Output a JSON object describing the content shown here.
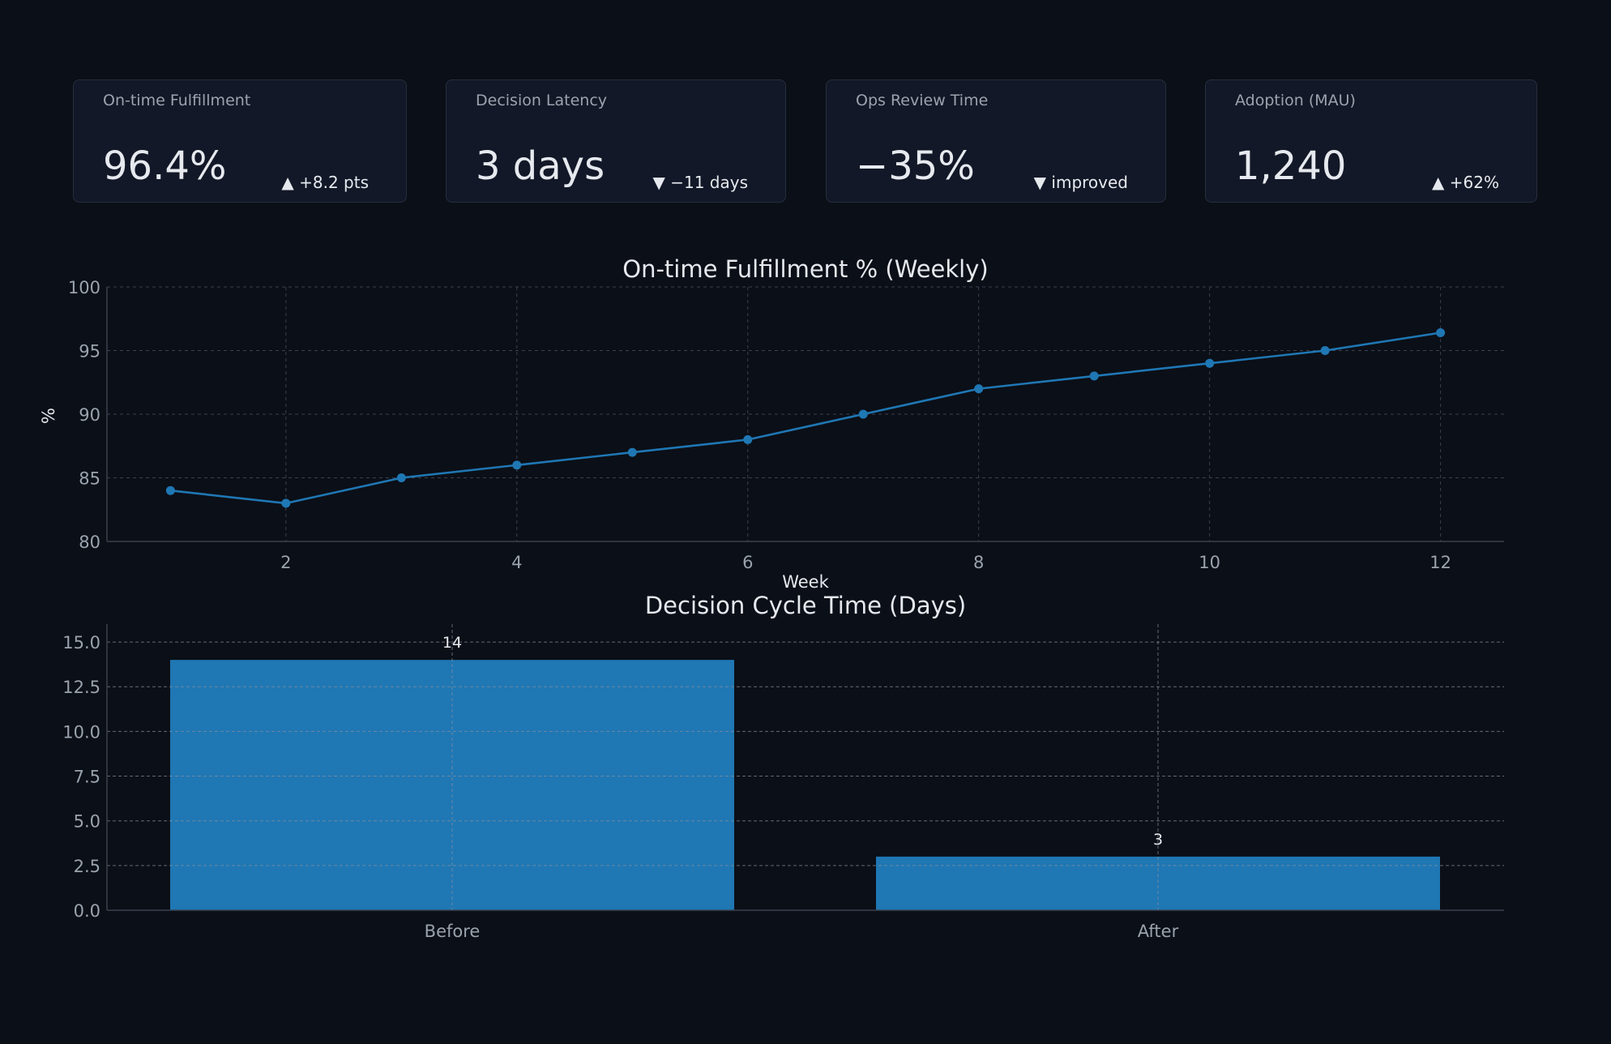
{
  "kpis": [
    {
      "label": "On-time Fulfillment",
      "value": "96.4%",
      "delta": "▲ +8.2 pts"
    },
    {
      "label": "Decision Latency",
      "value": "3 days",
      "delta": "▼ −11 days"
    },
    {
      "label": "Ops Review Time",
      "value": "−35%",
      "delta": "▼ improved"
    },
    {
      "label": "Adoption (MAU)",
      "value": "1,240",
      "delta": "▲ +62%"
    }
  ],
  "colors": {
    "background": "#0b0f17",
    "series": "#1f77b4",
    "text": "#e6e9ee",
    "muted": "#9aa3ae"
  },
  "chart_data": [
    {
      "type": "line",
      "title": "On-time Fulfillment % (Weekly)",
      "xlabel": "Week",
      "ylabel": "%",
      "x": [
        1,
        2,
        3,
        4,
        5,
        6,
        7,
        8,
        9,
        10,
        11,
        12
      ],
      "values": [
        84,
        83,
        85,
        86,
        87,
        88,
        90,
        92,
        93,
        94,
        95,
        96.4
      ],
      "xlim": [
        0.45,
        12.55
      ],
      "ylim": [
        80,
        100
      ],
      "xticks": [
        2,
        4,
        6,
        8,
        10,
        12
      ],
      "yticks": [
        80,
        85,
        90,
        95,
        100
      ],
      "grid": true
    },
    {
      "type": "bar",
      "title": "Decision Cycle Time (Days)",
      "categories": [
        "Before",
        "After"
      ],
      "values": [
        14,
        3
      ],
      "data_labels": [
        "14",
        "3"
      ],
      "ylim": [
        0,
        16
      ],
      "yticks": [
        "0.0",
        "2.5",
        "5.0",
        "7.5",
        "10.0",
        "12.5",
        "15.0"
      ],
      "grid": true
    }
  ]
}
